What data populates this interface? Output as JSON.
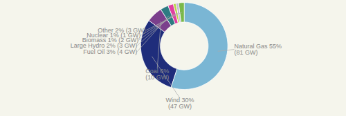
{
  "chart_data": {
    "type": "pie",
    "categories": [
      "Natural Gas 55%\n(81 GW)",
      "Wind 30%\n(47 GW)",
      "Coal 6%\n(10 GW)",
      "Fuel Oil 3% (4 GW)",
      "Large Hydro 2% (3 GW)",
      "Biomass 1% (2 GW)",
      "Nuclear 1% (1 GW)",
      "Other 2% (3 GW)"
    ],
    "values": [
      55,
      30,
      6,
      3,
      2,
      1,
      1,
      2
    ],
    "colors": [
      "#7ab6d4",
      "#1f2d7b",
      "#7b3f8c",
      "#2e7b82",
      "#e040a0",
      "#b8d44a",
      "#c8b8d8",
      "#7ab84a"
    ]
  }
}
